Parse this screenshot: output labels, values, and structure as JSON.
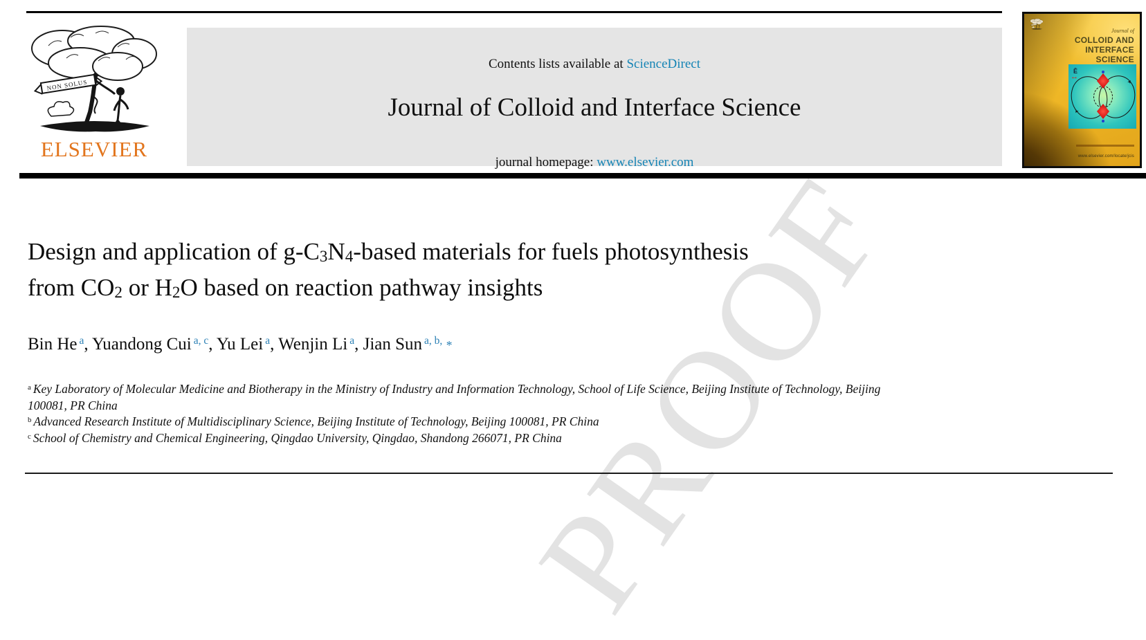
{
  "page": {
    "watermark": "PROOF"
  },
  "header": {
    "logo": {
      "wordmark": "ELSEVIER",
      "ribbon": "NON SOLUS"
    },
    "banner": {
      "contents_prefix": "Contents lists available at ",
      "contents_link": "ScienceDirect",
      "journal_title": "Journal of Colloid and Interface Science",
      "homepage_prefix": "journal homepage: ",
      "homepage_link": "www.elsevier.com"
    },
    "cover": {
      "kicker": "Journal of",
      "title_line1": "COLLOID AND",
      "title_line2": "INTERFACE",
      "title_line3": "SCIENCE",
      "inset_label": "Ē",
      "url": "www.elsevier.com/locate/jcis"
    }
  },
  "article": {
    "title_segments": [
      {
        "t": "Design and application of g-C"
      },
      {
        "t": "3",
        "sub": true
      },
      {
        "t": "N"
      },
      {
        "t": "4",
        "sub": true
      },
      {
        "t": "-based materials for fuels photosynthesis"
      },
      {
        "br": true
      },
      {
        "t": "from CO"
      },
      {
        "t": "2",
        "sub": true
      },
      {
        "t": " or H"
      },
      {
        "t": "2",
        "sub": true
      },
      {
        "t": "O based on reaction pathway insights"
      }
    ],
    "author_segments": [
      {
        "t": "Bin He"
      },
      {
        "t": "a",
        "sup": true,
        "cls": "teal"
      },
      {
        "t": ", "
      },
      {
        "t": "Yuandong Cui"
      },
      {
        "t": "a, c",
        "sup": true,
        "cls": "teal"
      },
      {
        "t": ", "
      },
      {
        "t": "Yu Lei"
      },
      {
        "t": "a",
        "sup": true,
        "cls": "teal"
      },
      {
        "t": ", "
      },
      {
        "t": "Wenjin Li"
      },
      {
        "t": "a",
        "sup": true,
        "cls": "teal"
      },
      {
        "t": ", "
      },
      {
        "t": "Jian Sun"
      },
      {
        "t": "a, b,",
        "sup": true,
        "cls": "teal"
      },
      {
        "t": " *",
        "cls": "teal star"
      }
    ],
    "affiliations": [
      {
        "marker": "a",
        "text": "Key Laboratory of Molecular Medicine and Biotherapy in the Ministry of Industry and Information Technology, School of Life Science, Beijing Institute of Technology, Beijing 100081, PR China"
      },
      {
        "marker": "b",
        "text": "Advanced Research Institute of Multidisciplinary Science, Beijing Institute of Technology, Beijing 100081, PR China"
      },
      {
        "marker": "c",
        "text": "School of Chemistry and Chemical Engineering, Qingdao University, Qingdao, Shandong 266071, PR China"
      }
    ]
  },
  "colors": {
    "accent_teal": "#1584b5",
    "elsevier_orange": "#e2751d",
    "banner_gray": "#e5e5e5",
    "watermark_gray": "#e3e3e3"
  }
}
